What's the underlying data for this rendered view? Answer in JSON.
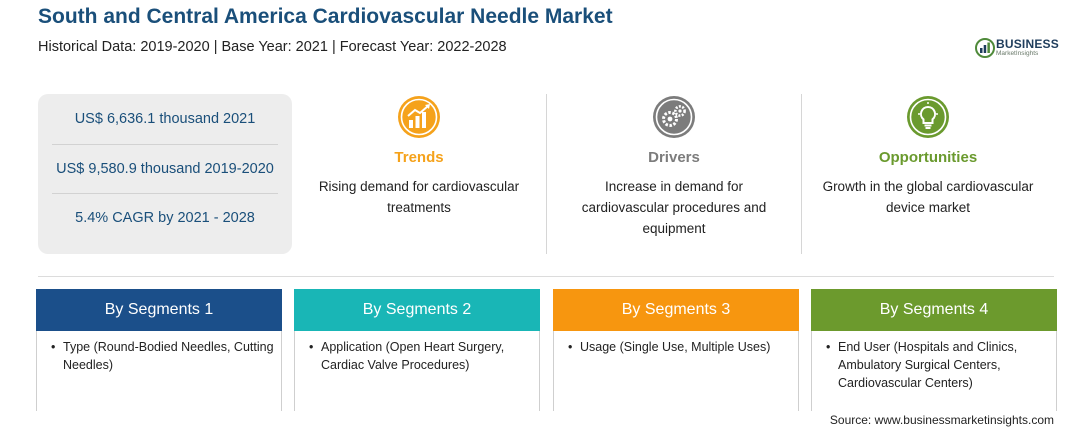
{
  "header": {
    "title": "South and Central America Cardiovascular Needle Market",
    "subtitle": "Historical Data: 2019-2020 | Base Year: 2021 | Forecast Year: 2022-2028"
  },
  "logo": {
    "name": "BUSINESS",
    "tagline": "MarketInsights",
    "icon": "business-insights-logo"
  },
  "stats": [
    "US$ 6,636.1 thousand 2021",
    "US$ 9,580.9 thousand 2019-2020",
    "5.4% CAGR by 2021 - 2028"
  ],
  "features": [
    {
      "title": "Trends",
      "description": "Rising demand for cardiovascular treatments",
      "icon": "chart-growth-icon",
      "color": "#f5a21b"
    },
    {
      "title": "Drivers",
      "description": "Increase in demand for cardiovascular procedures and equipment",
      "icon": "gears-icon",
      "color": "#7c7c7c"
    },
    {
      "title": "Opportunities",
      "description": "Growth in the global cardiovascular device market",
      "icon": "lightbulb-icon",
      "color": "#6a9a2e"
    }
  ],
  "segments": [
    {
      "title": "By Segments 1",
      "item": "Type (Round-Bodied Needles, Cutting Needles)",
      "color": "#1b4f8a"
    },
    {
      "title": "By Segments 2",
      "item": "Application (Open Heart Surgery, Cardiac Valve Procedures)",
      "color": "#19b6b6"
    },
    {
      "title": "By Segments 3",
      "item": "Usage (Single Use, Multiple Uses)",
      "color": "#f7960f"
    },
    {
      "title": "By Segments 4",
      "item": "End User (Hospitals and Clinics, Ambulatory Surgical Centers, Cardiovascular Centers)",
      "color": "#6c9a2d"
    }
  ],
  "bullet_char": "•",
  "source": "Source: www.businessmarketinsights.com"
}
